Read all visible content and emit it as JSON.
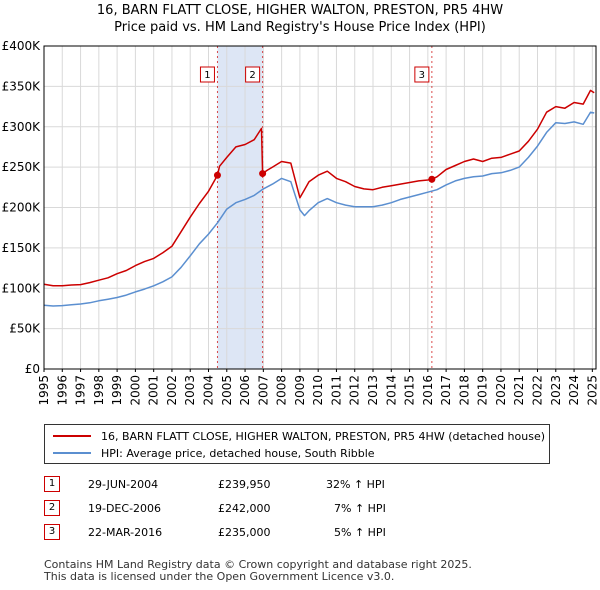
{
  "header": {
    "title": "16, BARN FLATT CLOSE, HIGHER WALTON, PRESTON, PR5 4HW",
    "subtitle": "Price paid vs. HM Land Registry's House Price Index (HPI)"
  },
  "colors": {
    "property": "#cc0000",
    "hpi": "#5b8fd0",
    "shade": "#dde6f5",
    "grid": "#d9d9d9",
    "marker": "#cc0000"
  },
  "chart_data": {
    "type": "line",
    "title": "16, BARN FLATT CLOSE, HIGHER WALTON, PRESTON, PR5 4HW",
    "subtitle": "Price paid vs. HM Land Registry's House Price Index (HPI)",
    "xlabel": "",
    "ylabel": "",
    "xlim": [
      1995,
      2025.2
    ],
    "ylim": [
      0,
      400000
    ],
    "grid": true,
    "y_ticks": [
      {
        "value": 0,
        "label": "£0"
      },
      {
        "value": 50000,
        "label": "£50K"
      },
      {
        "value": 100000,
        "label": "£100K"
      },
      {
        "value": 150000,
        "label": "£150K"
      },
      {
        "value": 200000,
        "label": "£200K"
      },
      {
        "value": 250000,
        "label": "£250K"
      },
      {
        "value": 300000,
        "label": "£300K"
      },
      {
        "value": 350000,
        "label": "£350K"
      },
      {
        "value": 400000,
        "label": "£400K"
      }
    ],
    "x_ticks": [
      {
        "value": 1995,
        "label": "1995"
      },
      {
        "value": 1996,
        "label": "1996"
      },
      {
        "value": 1997,
        "label": "1997"
      },
      {
        "value": 1998,
        "label": "1998"
      },
      {
        "value": 1999,
        "label": "1999"
      },
      {
        "value": 2000,
        "label": "2000"
      },
      {
        "value": 2001,
        "label": "2001"
      },
      {
        "value": 2002,
        "label": "2002"
      },
      {
        "value": 2003,
        "label": "2003"
      },
      {
        "value": 2004,
        "label": "2004"
      },
      {
        "value": 2005,
        "label": "2005"
      },
      {
        "value": 2006,
        "label": "2006"
      },
      {
        "value": 2007,
        "label": "2007"
      },
      {
        "value": 2008,
        "label": "2008"
      },
      {
        "value": 2009,
        "label": "2009"
      },
      {
        "value": 2010,
        "label": "2010"
      },
      {
        "value": 2011,
        "label": "2011"
      },
      {
        "value": 2012,
        "label": "2012"
      },
      {
        "value": 2013,
        "label": "2013"
      },
      {
        "value": 2014,
        "label": "2014"
      },
      {
        "value": 2015,
        "label": "2015"
      },
      {
        "value": 2016,
        "label": "2016"
      },
      {
        "value": 2017,
        "label": "2017"
      },
      {
        "value": 2018,
        "label": "2018"
      },
      {
        "value": 2019,
        "label": "2019"
      },
      {
        "value": 2020,
        "label": "2020"
      },
      {
        "value": 2021,
        "label": "2021"
      },
      {
        "value": 2022,
        "label": "2022"
      },
      {
        "value": 2023,
        "label": "2023"
      },
      {
        "value": 2024,
        "label": "2024"
      },
      {
        "value": 2025,
        "label": "2025"
      }
    ],
    "shaded_periods": [
      [
        2004.49,
        2006.96
      ]
    ],
    "series": [
      {
        "name": "16, BARN FLATT CLOSE, HIGHER WALTON, PRESTON, PR5 4HW (detached house)",
        "x": [
          1995.0,
          1995.5,
          1996.0,
          1996.5,
          1997.0,
          1997.5,
          1998.0,
          1998.5,
          1999.0,
          1999.5,
          2000.0,
          2000.5,
          2001.0,
          2001.5,
          2002.0,
          2002.5,
          2003.0,
          2003.5,
          2004.0,
          2004.49,
          2004.6,
          2005.0,
          2005.5,
          2006.0,
          2006.5,
          2006.9,
          2006.96,
          2007.2,
          2007.5,
          2008.0,
          2008.5,
          2009.0,
          2009.25,
          2009.5,
          2010.0,
          2010.5,
          2011.0,
          2011.5,
          2012.0,
          2012.5,
          2013.0,
          2013.5,
          2014.0,
          2014.5,
          2015.0,
          2015.5,
          2016.0,
          2016.22,
          2016.5,
          2017.0,
          2017.5,
          2018.0,
          2018.5,
          2019.0,
          2019.5,
          2020.0,
          2020.5,
          2021.0,
          2021.5,
          2022.0,
          2022.5,
          2023.0,
          2023.5,
          2024.0,
          2024.5,
          2024.9,
          2025.1
        ],
        "values": [
          105000,
          103000,
          103000,
          104000,
          104500,
          107000,
          110000,
          113000,
          118000,
          122000,
          128000,
          133000,
          137000,
          144000,
          152000,
          170000,
          188000,
          205000,
          220000,
          239950,
          251000,
          262000,
          275000,
          278000,
          284000,
          298000,
          242000,
          246000,
          250000,
          257000,
          255000,
          212000,
          222000,
          232000,
          240000,
          245000,
          236000,
          232000,
          226000,
          223000,
          222000,
          225000,
          227000,
          229000,
          231000,
          233000,
          234000,
          235000,
          238000,
          247000,
          252000,
          257000,
          260000,
          257000,
          261000,
          262000,
          266000,
          270000,
          282000,
          297000,
          318000,
          325000,
          323000,
          330000,
          328000,
          345000,
          342000
        ]
      },
      {
        "name": "HPI: Average price, detached house, South Ribble",
        "x": [
          1995.0,
          1995.5,
          1996.0,
          1996.5,
          1997.0,
          1997.5,
          1998.0,
          1998.5,
          1999.0,
          1999.5,
          2000.0,
          2000.5,
          2001.0,
          2001.5,
          2002.0,
          2002.5,
          2003.0,
          2003.5,
          2004.0,
          2004.49,
          2005.0,
          2005.5,
          2006.0,
          2006.5,
          2007.0,
          2007.5,
          2008.0,
          2008.5,
          2009.0,
          2009.25,
          2009.5,
          2010.0,
          2010.5,
          2011.0,
          2011.5,
          2012.0,
          2012.5,
          2013.0,
          2013.5,
          2014.0,
          2014.5,
          2015.0,
          2015.5,
          2016.0,
          2016.5,
          2017.0,
          2017.5,
          2018.0,
          2018.5,
          2019.0,
          2019.5,
          2020.0,
          2020.5,
          2021.0,
          2021.5,
          2022.0,
          2022.5,
          2023.0,
          2023.5,
          2024.0,
          2024.5,
          2024.9,
          2025.1
        ],
        "values": [
          79000,
          78000,
          78500,
          79500,
          80500,
          82000,
          84500,
          86500,
          88500,
          91500,
          95500,
          99000,
          103000,
          108000,
          114000,
          126000,
          140000,
          155000,
          167000,
          181000,
          198000,
          206000,
          210000,
          215000,
          223000,
          229000,
          236000,
          232000,
          197000,
          190000,
          196000,
          206000,
          211000,
          206000,
          203000,
          201000,
          201000,
          201000,
          203000,
          206000,
          210000,
          213000,
          216000,
          219000,
          222000,
          228000,
          233000,
          236000,
          238000,
          239000,
          242000,
          243000,
          246000,
          250000,
          262000,
          276000,
          293000,
          305000,
          304000,
          306000,
          303000,
          318000,
          317000
        ]
      }
    ],
    "sales": [
      {
        "label": "1",
        "x": 2004.49,
        "price": 239950
      },
      {
        "label": "2",
        "x": 2006.96,
        "price": 242000
      },
      {
        "label": "3",
        "x": 2016.22,
        "price": 235000
      }
    ]
  },
  "legend": {
    "property": "16, BARN FLATT CLOSE, HIGHER WALTON, PRESTON, PR5 4HW (detached house)",
    "hpi": "HPI: Average price, detached house, South Ribble"
  },
  "transactions": [
    {
      "num": "1",
      "date": "29-JUN-2004",
      "price": "£239,950",
      "change": "32% ↑ HPI"
    },
    {
      "num": "2",
      "date": "19-DEC-2006",
      "price": "£242,000",
      "change": "7% ↑ HPI"
    },
    {
      "num": "3",
      "date": "22-MAR-2016",
      "price": "£235,000",
      "change": "5% ↑ HPI"
    }
  ],
  "footer": {
    "line1": "Contains HM Land Registry data © Crown copyright and database right 2025.",
    "line2": "This data is licensed under the Open Government Licence v3.0."
  }
}
